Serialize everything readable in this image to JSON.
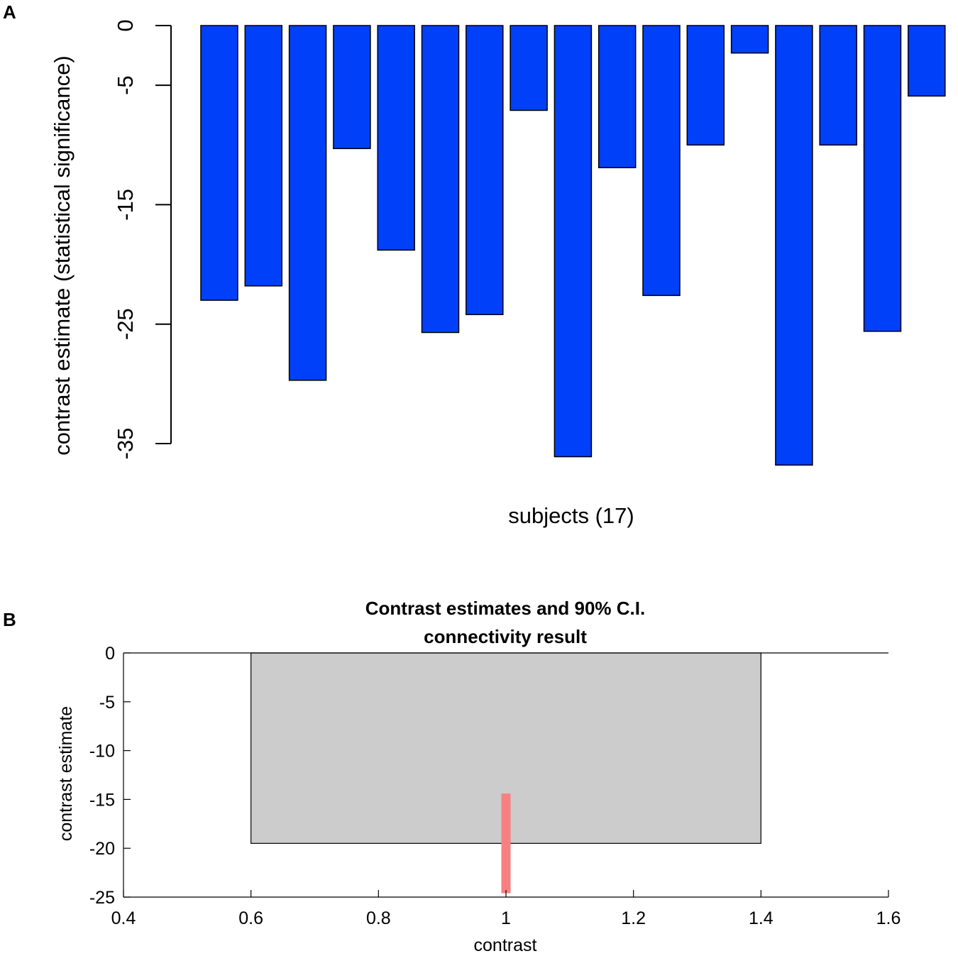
{
  "panel_labels": {
    "a": "A",
    "b": "B"
  },
  "chart_data": [
    {
      "type": "bar",
      "panel": "A",
      "title": "",
      "xlabel": "subjects (17)",
      "ylabel": "contrast estimate (statistical significance)",
      "ylim": [
        -35,
        0
      ],
      "yticks": [
        0,
        -5,
        -15,
        -25,
        -35
      ],
      "ytick_labels": [
        "0",
        "-5",
        "-15",
        "-25",
        "-35"
      ],
      "values": [
        -23,
        -21.8,
        -29.7,
        -10.3,
        -18.8,
        -25.7,
        -24.2,
        -7.1,
        -36.1,
        -11.9,
        -22.6,
        -10,
        -2.3,
        -36.8,
        -10,
        -25.6,
        -5.9
      ],
      "bar_color": "#0040f8",
      "grid": false
    },
    {
      "type": "bar",
      "panel": "B",
      "title": "Contrast estimates and 90% C.I.",
      "subtitle": "connectivity result",
      "xlabel": "contrast",
      "ylabel": "contrast estimate",
      "xlim": [
        0.4,
        1.6
      ],
      "ylim": [
        -25,
        0
      ],
      "xticks": [
        0.4,
        0.6,
        0.8,
        1,
        1.2,
        1.4,
        1.6
      ],
      "xtick_labels": [
        "0.4",
        "0.6",
        "0.8",
        "1",
        "1.2",
        "1.4",
        "1.6"
      ],
      "yticks": [
        0,
        -5,
        -10,
        -15,
        -20,
        -25
      ],
      "ytick_labels": [
        "0",
        "-5",
        "-10",
        "-15",
        "-20",
        "-25"
      ],
      "bar": {
        "x": 1,
        "width": 0.8,
        "value": -19.5,
        "color": "#cccccc"
      },
      "ci": {
        "x": 1,
        "lower": -24.6,
        "upper": -14.4,
        "color": "#f88080"
      },
      "grid": false
    }
  ]
}
